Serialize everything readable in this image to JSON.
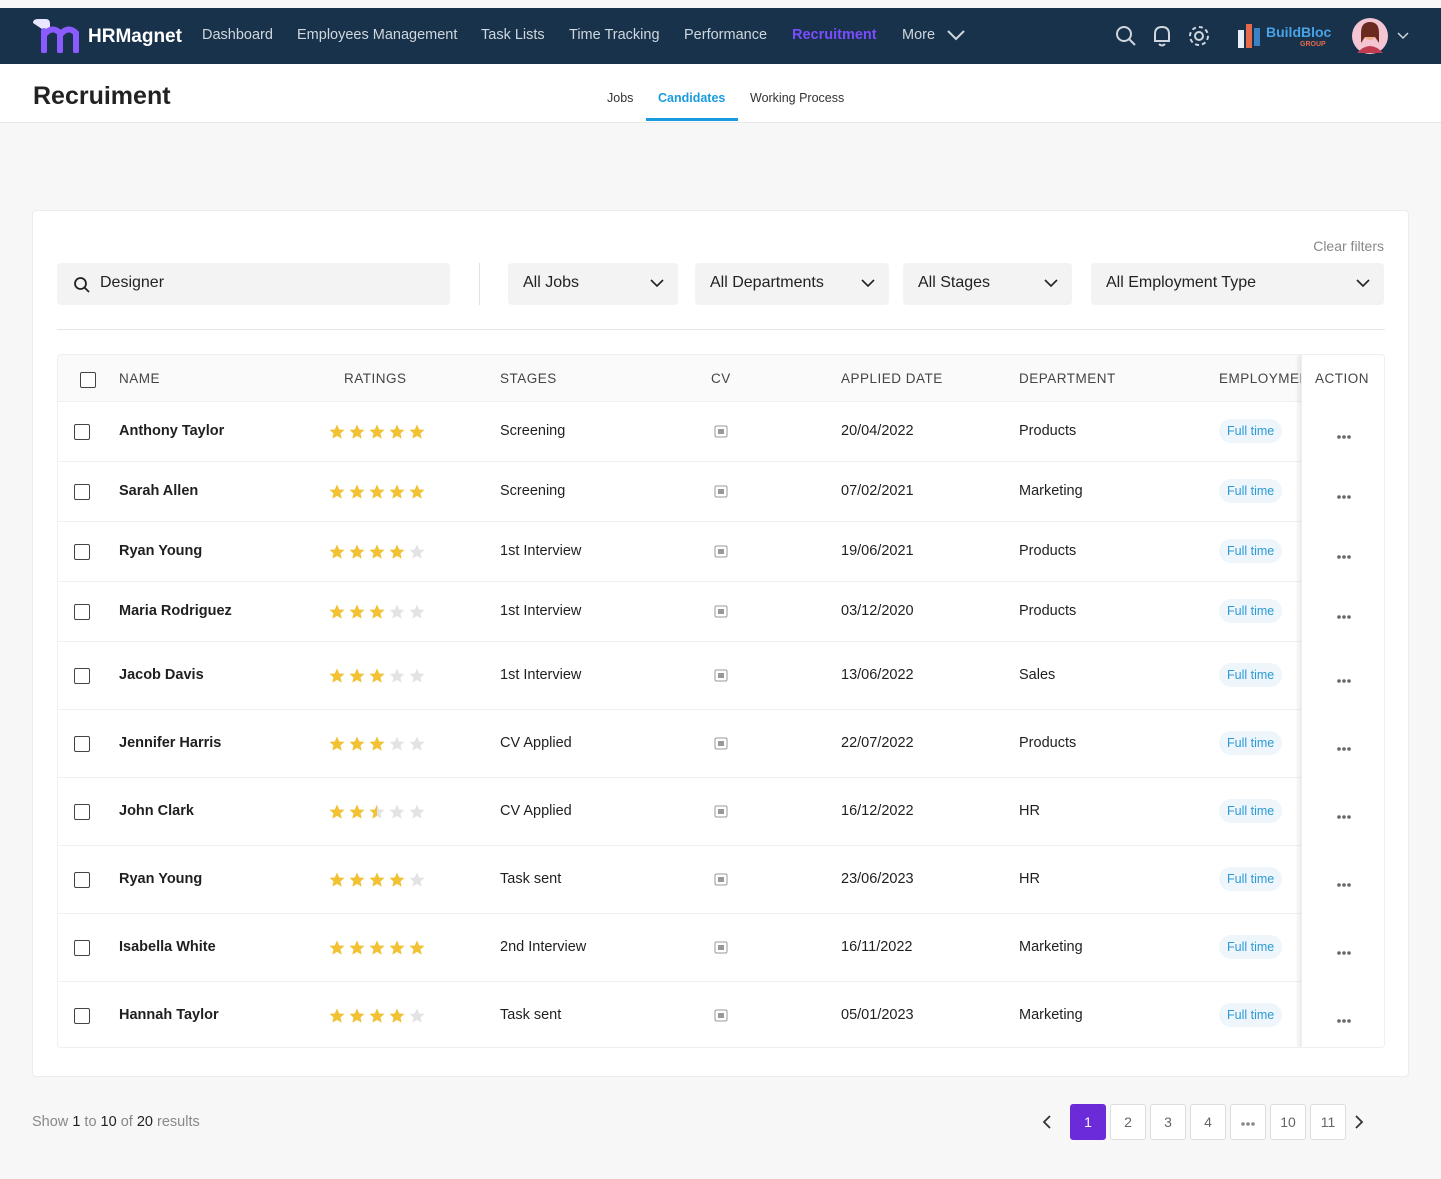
{
  "nav": {
    "brand": "HRMagnet",
    "items": [
      "Dashboard",
      "Employees Management",
      "Task Lists",
      "Time Tracking",
      "Performance",
      "Recruitment",
      "More"
    ]
  },
  "partner": {
    "name": "BuildBloc",
    "sub": "GROUP"
  },
  "page": {
    "title": "Recruiment",
    "tabs": [
      "Jobs",
      "Candidates",
      "Working Process"
    ]
  },
  "filters": {
    "clear": "Clear filters",
    "search": "Designer",
    "selects": [
      "All Jobs",
      "All Departments",
      "All Stages",
      "All Employment Type"
    ]
  },
  "table": {
    "columns": [
      "NAME",
      "RATINGS",
      "STAGES",
      "CV",
      "APPLIED DATE",
      "DEPARTMENT",
      "EMPLOYMENT",
      "ACTION"
    ],
    "rows": [
      {
        "name": "Anthony Taylor",
        "rating": 5,
        "stage": "Screening",
        "applied": "20/04/2022",
        "department": "Products",
        "employment": "Full time"
      },
      {
        "name": "Sarah Allen",
        "rating": 5,
        "stage": "Screening",
        "applied": "07/02/2021",
        "department": "Marketing",
        "employment": "Full time"
      },
      {
        "name": "Ryan Young",
        "rating": 4,
        "stage": "1st Interview",
        "applied": "19/06/2021",
        "department": "Products",
        "employment": "Full time"
      },
      {
        "name": "Maria Rodriguez",
        "rating": 3,
        "stage": "1st Interview",
        "applied": "03/12/2020",
        "department": "Products",
        "employment": "Full time"
      },
      {
        "name": "Jacob Davis",
        "rating": 3,
        "stage": "1st Interview",
        "applied": "13/06/2022",
        "department": "Sales",
        "employment": "Full time"
      },
      {
        "name": "Jennifer Harris",
        "rating": 3,
        "stage": "CV Applied",
        "applied": "22/07/2022",
        "department": "Products",
        "employment": "Full time"
      },
      {
        "name": "John Clark",
        "rating": 2.5,
        "stage": "CV Applied",
        "applied": "16/12/2022",
        "department": "HR",
        "employment": "Full time"
      },
      {
        "name": "Ryan Young",
        "rating": 4,
        "stage": "Task sent",
        "applied": "23/06/2023",
        "department": "HR",
        "employment": "Full time"
      },
      {
        "name": "Isabella White",
        "rating": 5,
        "stage": "2nd Interview",
        "applied": "16/11/2022",
        "department": "Marketing",
        "employment": "Full time"
      },
      {
        "name": "Hannah Taylor",
        "rating": 4,
        "stage": "Task sent",
        "applied": "05/01/2023",
        "department": "Marketing",
        "employment": "Full time"
      }
    ]
  },
  "pagination": {
    "show": "Show",
    "from": 1,
    "to_word": "to",
    "to": 10,
    "of_word": "of",
    "total": 20,
    "results": "results",
    "pages": [
      1,
      2,
      3,
      4,
      10,
      11
    ]
  }
}
